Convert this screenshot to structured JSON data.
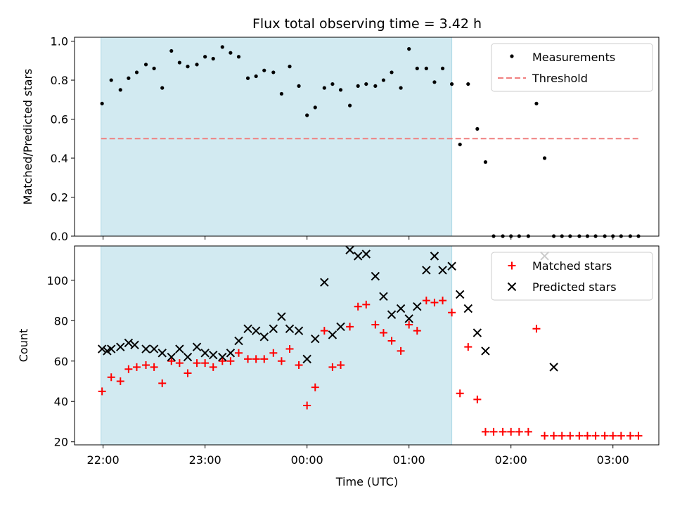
{
  "figure": {
    "title": "Flux total observing time = 3.42 h",
    "xlabel": "Time (UTC)",
    "x_tick_labels": [
      "22:00",
      "23:00",
      "00:00",
      "01:00",
      "02:00",
      "03:00"
    ]
  },
  "colors": {
    "shade": "#add8e6",
    "measurement": "#000000",
    "threshold": "#f08080",
    "matched": "#ff0000",
    "predicted": "#000000"
  },
  "chart_data": [
    {
      "type": "scatter",
      "name": "ratio-panel",
      "ylabel": "Matched/Predicted stars",
      "ylim": [
        0.0,
        1.02
      ],
      "y_ticks": [
        0.0,
        0.2,
        0.4,
        0.6,
        0.8,
        1.0
      ],
      "y_tick_labels": [
        "0.0",
        "0.2",
        "0.4",
        "0.6",
        "0.8",
        "1.0"
      ],
      "xlim_hours": [
        21.72,
        27.45
      ],
      "shaded_span_hours": [
        21.98,
        25.42
      ],
      "legend": {
        "position": "upper right",
        "entries": [
          "Measurements",
          "Threshold"
        ]
      },
      "threshold": 0.5,
      "threshold_span_hours": [
        21.98,
        27.25
      ],
      "series": [
        {
          "name": "Measurements",
          "marker": "dot",
          "x_hours": [
            21.99,
            22.08,
            22.17,
            22.25,
            22.33,
            22.42,
            22.5,
            22.58,
            22.67,
            22.75,
            22.83,
            22.92,
            23.0,
            23.08,
            23.17,
            23.25,
            23.33,
            23.42,
            23.5,
            23.58,
            23.67,
            23.75,
            23.83,
            23.92,
            24.0,
            24.08,
            24.17,
            24.25,
            24.33,
            24.42,
            24.5,
            24.58,
            24.67,
            24.75,
            24.83,
            24.92,
            25.0,
            25.08,
            25.17,
            25.25,
            25.33,
            25.42,
            25.5,
            25.58,
            25.67,
            25.75,
            25.83,
            25.92,
            26.0,
            26.08,
            26.17,
            26.25,
            26.33,
            26.42,
            26.5,
            26.58,
            26.67,
            26.75,
            26.83,
            26.92,
            27.0,
            27.08,
            27.17,
            27.25
          ],
          "y": [
            0.68,
            0.8,
            0.75,
            0.81,
            0.84,
            0.88,
            0.86,
            0.76,
            0.95,
            0.89,
            0.87,
            0.88,
            0.92,
            0.91,
            0.97,
            0.94,
            0.92,
            0.81,
            0.82,
            0.85,
            0.84,
            0.73,
            0.87,
            0.77,
            0.62,
            0.66,
            0.76,
            0.78,
            0.75,
            0.67,
            0.77,
            0.78,
            0.77,
            0.8,
            0.84,
            0.76,
            0.96,
            0.86,
            0.86,
            0.79,
            0.86,
            0.78,
            0.47,
            0.78,
            0.55,
            0.38,
            0.0,
            0.0,
            0.0,
            0.0,
            0.0,
            0.68,
            0.4,
            0.0,
            0.0,
            0.0,
            0.0,
            0.0,
            0.0,
            0.0,
            0.0,
            0.0,
            0.0,
            0.0
          ]
        }
      ]
    },
    {
      "type": "scatter",
      "name": "count-panel",
      "ylabel": "Count",
      "ylim": [
        18.5,
        117
      ],
      "y_ticks": [
        20,
        40,
        60,
        80,
        100
      ],
      "y_tick_labels": [
        "20",
        "40",
        "60",
        "80",
        "100"
      ],
      "xlim_hours": [
        21.72,
        27.45
      ],
      "shaded_span_hours": [
        21.98,
        25.42
      ],
      "legend": {
        "position": "upper right",
        "entries": [
          "Matched stars",
          "Predicted stars"
        ]
      },
      "series": [
        {
          "name": "Matched stars",
          "marker": "plus",
          "x_hours": [
            21.99,
            22.08,
            22.17,
            22.25,
            22.33,
            22.42,
            22.5,
            22.58,
            22.67,
            22.75,
            22.83,
            22.92,
            23.0,
            23.08,
            23.17,
            23.25,
            23.33,
            23.42,
            23.5,
            23.58,
            23.67,
            23.75,
            23.83,
            23.92,
            24.0,
            24.08,
            24.17,
            24.25,
            24.33,
            24.42,
            24.5,
            24.58,
            24.67,
            24.75,
            24.83,
            24.92,
            25.0,
            25.08,
            25.17,
            25.25,
            25.33,
            25.42,
            25.5,
            25.58,
            25.67,
            25.75,
            25.83,
            25.92,
            26.0,
            26.08,
            26.17,
            26.25,
            26.33,
            26.42,
            26.5,
            26.58,
            26.67,
            26.75,
            26.83,
            26.92,
            27.0,
            27.08,
            27.17,
            27.25
          ],
          "y": [
            45,
            52,
            50,
            56,
            57,
            58,
            57,
            49,
            60,
            59,
            54,
            59,
            59,
            57,
            60,
            60,
            64,
            61,
            61,
            61,
            64,
            60,
            66,
            58,
            38,
            47,
            75,
            57,
            58,
            77,
            87,
            88,
            78,
            74,
            70,
            65,
            78,
            75,
            90,
            89,
            90,
            84,
            44,
            67,
            41,
            25,
            25,
            25,
            25,
            25,
            25,
            76,
            23,
            23,
            23,
            23,
            23,
            23,
            23,
            23,
            23,
            23,
            23,
            23
          ]
        },
        {
          "name": "Predicted stars",
          "marker": "x",
          "x_hours": [
            21.99,
            22.04,
            22.08,
            22.17,
            22.25,
            22.31,
            22.42,
            22.5,
            22.58,
            22.67,
            22.75,
            22.83,
            22.92,
            23.0,
            23.08,
            23.17,
            23.25,
            23.33,
            23.42,
            23.5,
            23.58,
            23.67,
            23.75,
            23.83,
            23.92,
            24.0,
            24.08,
            24.17,
            24.25,
            24.33,
            24.42,
            24.5,
            24.58,
            24.67,
            24.75,
            24.83,
            24.92,
            25.0,
            25.08,
            25.17,
            25.25,
            25.33,
            25.42,
            25.5,
            25.58,
            25.67,
            25.75,
            26.33,
            26.42
          ],
          "y": [
            66,
            65,
            66,
            67,
            69,
            68,
            66,
            66,
            64,
            62,
            66,
            62,
            67,
            64,
            63,
            62,
            64,
            70,
            76,
            75,
            72,
            76,
            82,
            76,
            75,
            61,
            71,
            99,
            73,
            77,
            115,
            112,
            113,
            102,
            92,
            83,
            86,
            81,
            87,
            105,
            112,
            105,
            107,
            93,
            86,
            74,
            65,
            112,
            57
          ]
        }
      ]
    }
  ]
}
